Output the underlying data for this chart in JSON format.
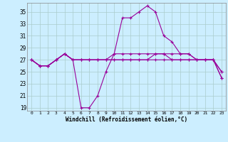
{
  "xlabel": "Windchill (Refroidissement éolien,°C)",
  "hours": [
    0,
    1,
    2,
    3,
    4,
    5,
    6,
    7,
    8,
    9,
    10,
    11,
    12,
    13,
    14,
    15,
    16,
    17,
    18,
    19,
    20,
    21,
    22,
    23
  ],
  "series1": [
    27,
    26,
    26,
    27,
    28,
    27,
    19,
    19,
    21,
    25,
    28,
    34,
    34,
    35,
    36,
    35,
    31,
    30,
    28,
    28,
    27,
    27,
    27,
    25
  ],
  "series2": [
    27,
    26,
    26,
    27,
    28,
    27,
    27,
    27,
    27,
    27,
    28,
    28,
    28,
    28,
    28,
    28,
    28,
    27,
    27,
    27,
    27,
    27,
    27,
    25
  ],
  "series3": [
    27,
    26,
    26,
    27,
    28,
    27,
    27,
    27,
    27,
    27,
    27,
    27,
    27,
    27,
    27,
    27,
    27,
    27,
    27,
    27,
    27,
    27,
    27,
    24
  ],
  "series4": [
    27,
    26,
    26,
    27,
    28,
    27,
    27,
    27,
    27,
    27,
    27,
    27,
    27,
    27,
    27,
    28,
    28,
    28,
    28,
    28,
    27,
    27,
    27,
    24
  ],
  "line_color": "#990099",
  "bg_color": "#cceeff",
  "grid_color": "#aacccc",
  "ylim_min": 18.5,
  "ylim_max": 36.5,
  "yticks": [
    19,
    21,
    23,
    25,
    27,
    29,
    31,
    33,
    35
  ],
  "xticks": [
    0,
    1,
    2,
    3,
    4,
    5,
    6,
    7,
    8,
    9,
    10,
    11,
    12,
    13,
    14,
    15,
    16,
    17,
    18,
    19,
    20,
    21,
    22,
    23
  ]
}
